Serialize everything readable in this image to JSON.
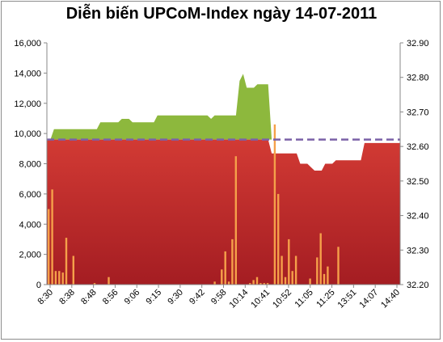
{
  "chart_data": {
    "type": "area",
    "title": "Diễn biến UPCoM-Index ngày 14-07-2011",
    "x_tick_labels": [
      "8:30",
      "8:38",
      "8:48",
      "8:56",
      "9:06",
      "9:15",
      "9:30",
      "9:42",
      "9:58",
      "10:14",
      "10:41",
      "10:52",
      "11:05",
      "11:25",
      "13:51",
      "14:07",
      "14:40"
    ],
    "y_left": {
      "min": 0,
      "max": 16000,
      "step": 2000,
      "tick_labels": [
        "0",
        "2,000",
        "4,000",
        "6,000",
        "8,000",
        "10,000",
        "12,000",
        "14,000",
        "16,000"
      ]
    },
    "y_right": {
      "min": 32.2,
      "max": 32.9,
      "step": 0.1,
      "tick_labels": [
        "32.20",
        "32.30",
        "32.40",
        "32.50",
        "32.60",
        "32.70",
        "32.80",
        "32.90"
      ]
    },
    "reference_level": 32.62,
    "num_points": 100,
    "series": [
      {
        "axis": "right",
        "color_above": "#8db83d",
        "color_below": "#b8262a",
        "values": [
          32.62,
          32.62,
          32.65,
          32.65,
          32.65,
          32.65,
          32.65,
          32.65,
          32.65,
          32.65,
          32.65,
          32.65,
          32.65,
          32.65,
          32.65,
          32.67,
          32.67,
          32.67,
          32.67,
          32.67,
          32.67,
          32.68,
          32.68,
          32.68,
          32.67,
          32.67,
          32.67,
          32.67,
          32.67,
          32.67,
          32.67,
          32.69,
          32.69,
          32.69,
          32.69,
          32.69,
          32.69,
          32.69,
          32.69,
          32.69,
          32.69,
          32.69,
          32.69,
          32.69,
          32.69,
          32.69,
          32.68,
          32.69,
          32.69,
          32.69,
          32.69,
          32.69,
          32.69,
          32.69,
          32.79,
          32.81,
          32.77,
          32.77,
          32.77,
          32.78,
          32.78,
          32.78,
          32.78,
          32.58,
          32.58,
          32.58,
          32.58,
          32.58,
          32.58,
          32.58,
          32.58,
          32.55,
          32.55,
          32.55,
          32.54,
          32.53,
          32.53,
          32.53,
          32.55,
          32.55,
          32.55,
          32.56,
          32.56,
          32.56,
          32.56,
          32.56,
          32.56,
          32.56,
          32.56,
          32.61,
          32.61,
          32.61,
          32.61,
          32.61,
          32.61,
          32.61,
          32.61,
          32.61,
          32.61,
          32.61
        ]
      },
      {
        "axis": "left",
        "color": "#f5a04a",
        "values": [
          5000,
          6300,
          900,
          900,
          800,
          3100,
          0,
          1900,
          0,
          0,
          0,
          0,
          0,
          100,
          0,
          0,
          0,
          500,
          0,
          0,
          0,
          0,
          0,
          0,
          0,
          0,
          0,
          0,
          0,
          0,
          0,
          0,
          0,
          0,
          0,
          0,
          0,
          0,
          0,
          0,
          0,
          0,
          0,
          0,
          0,
          0,
          0,
          200,
          0,
          1000,
          2200,
          200,
          3000,
          8500,
          0,
          0,
          0,
          100,
          300,
          500,
          100,
          100,
          100,
          0,
          10600,
          6000,
          1900,
          500,
          3000,
          900,
          1900,
          0,
          0,
          0,
          400,
          0,
          1800,
          3400,
          700,
          1200,
          0,
          0,
          2500,
          0,
          0,
          0,
          0,
          0,
          0,
          0,
          0,
          0,
          0,
          0,
          0,
          0,
          0,
          0,
          0,
          0
        ]
      }
    ]
  }
}
